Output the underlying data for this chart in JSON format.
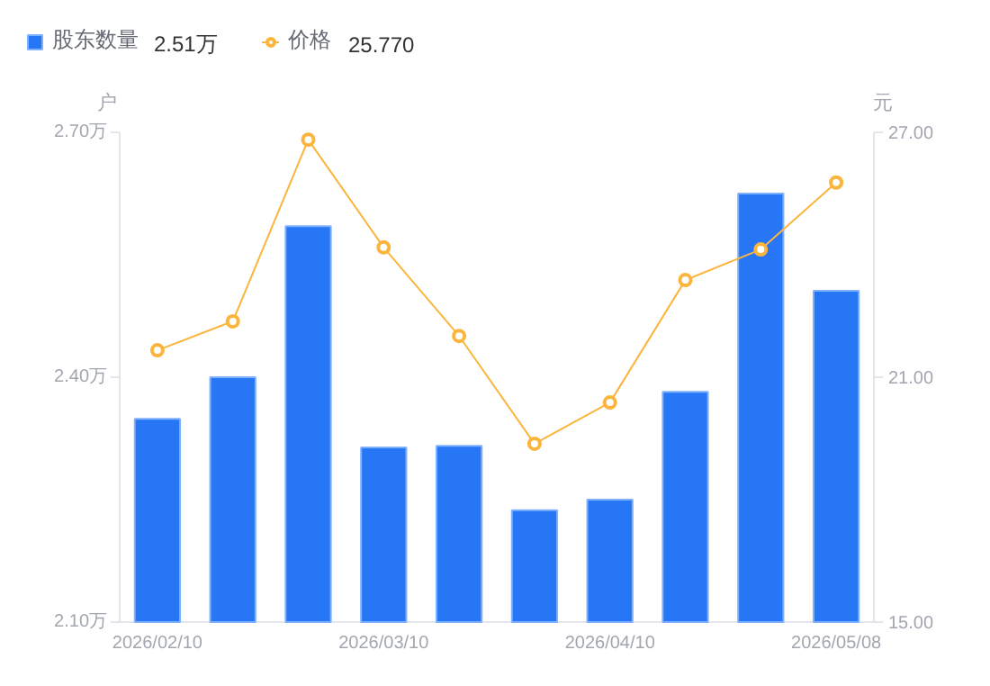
{
  "chart_data": {
    "type": "bar",
    "categories": [
      "2026/02/10",
      null,
      null,
      "2026/03/10",
      null,
      null,
      "2026/04/10",
      null,
      null,
      "2026/05/08"
    ],
    "series": [
      {
        "name": "股东数量",
        "color": "#2776f5",
        "values": [
          2.349,
          2.4,
          2.585,
          2.314,
          2.316,
          2.237,
          2.25,
          2.382,
          2.625,
          2.506
        ]
      },
      {
        "name": "价格",
        "type": "line",
        "axis": "y2",
        "color": "#fbb53c",
        "marker": "circle",
        "values": [
          21.66,
          22.37,
          26.82,
          24.18,
          22.01,
          19.37,
          20.38,
          23.38,
          24.13,
          25.77
        ]
      }
    ],
    "ylabel": "户",
    "y2label": "元",
    "ylim": [
      2.1,
      2.7
    ],
    "yticks": [
      {
        "value": 2.1,
        "label": "2.10万"
      },
      {
        "value": 2.4,
        "label": "2.40万"
      },
      {
        "value": 2.7,
        "label": "2.70万"
      }
    ],
    "y2lim": [
      15,
      27
    ],
    "y2ticks": [
      {
        "value": 15,
        "label": "15.00"
      },
      {
        "value": 21,
        "label": "21.00"
      },
      {
        "value": 27,
        "label": "27.00"
      }
    ],
    "annotations": [
      "2.51万",
      "25.770"
    ],
    "legend": "top left",
    "grid": false
  }
}
